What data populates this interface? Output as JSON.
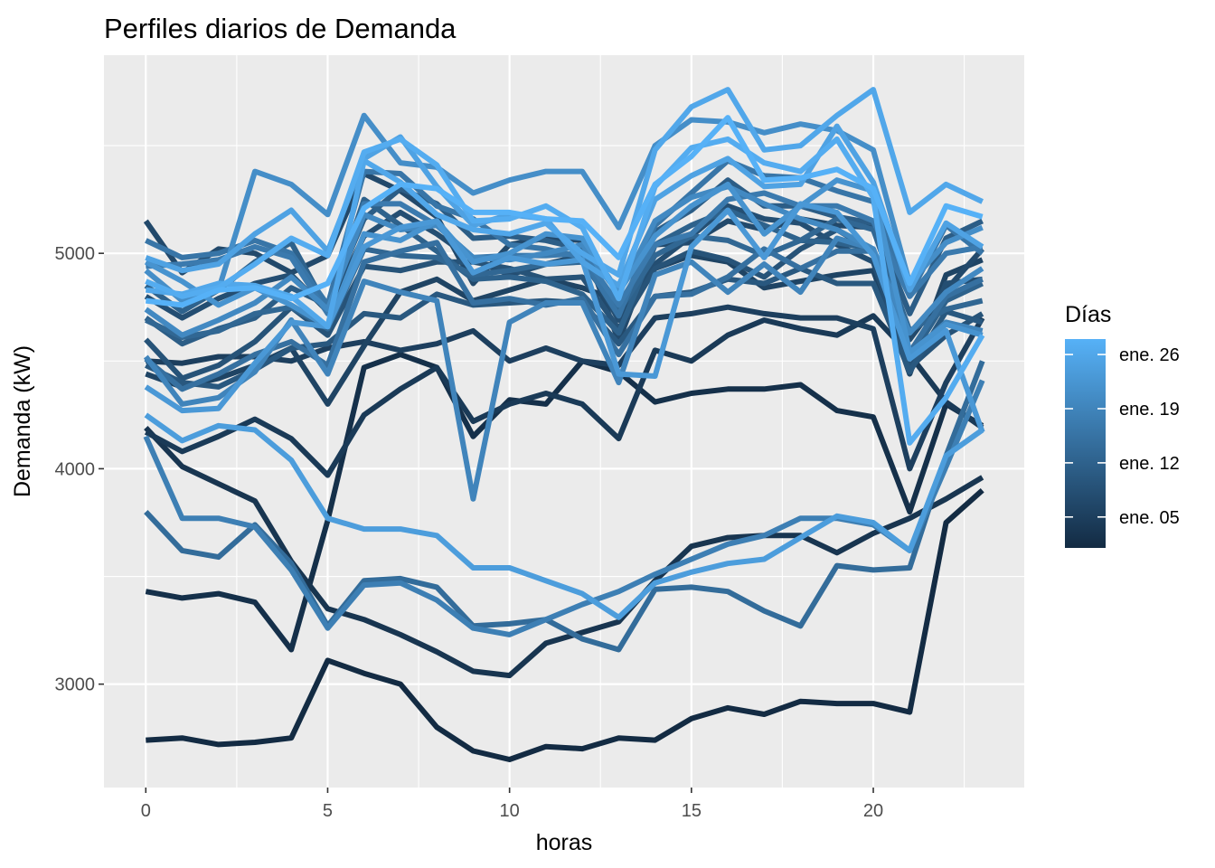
{
  "chart_data": {
    "type": "line",
    "title": "Perfiles diarios de Demanda",
    "xlabel": "horas",
    "ylabel": "Demanda (kW)",
    "xlim": [
      -1.15,
      24.15
    ],
    "ylim": [
      2520,
      5920
    ],
    "x_ticks": [
      0,
      5,
      10,
      15,
      20
    ],
    "x_tick_labels": [
      "0",
      "5",
      "10",
      "15",
      "20"
    ],
    "y_ticks": [
      3000,
      4000,
      5000
    ],
    "y_tick_labels": [
      "3000",
      "4000",
      "5000"
    ],
    "grid": true,
    "legend": {
      "title": "Días",
      "placement": "right",
      "type": "colorbar",
      "low_color": "#132B43",
      "high_color": "#56B1F7",
      "labels": [
        "ene. 26",
        "ene. 19",
        "ene. 12",
        "ene. 05"
      ],
      "label_days": [
        26,
        19,
        12,
        5
      ],
      "day_range": [
        1,
        28
      ]
    },
    "x": [
      0,
      1,
      2,
      3,
      4,
      5,
      6,
      7,
      8,
      9,
      10,
      11,
      12,
      13,
      14,
      15,
      16,
      17,
      18,
      19,
      20,
      21,
      22,
      23
    ],
    "series": [
      {
        "name": "ene. 01",
        "day": 1,
        "values": [
          2740,
          2750,
          2720,
          2730,
          2750,
          3110,
          3050,
          3000,
          2800,
          2690,
          2650,
          2710,
          2700,
          2750,
          2740,
          2840,
          2890,
          2860,
          2920,
          2910,
          2910,
          2870,
          3750,
          3900
        ]
      },
      {
        "name": "ene. 02",
        "day": 2,
        "values": [
          3430,
          3400,
          3420,
          3380,
          3160,
          3760,
          4470,
          4530,
          4470,
          4150,
          4320,
          4300,
          4500,
          4450,
          4310,
          4350,
          4370,
          4370,
          4390,
          4270,
          4240,
          3800,
          4300,
          4200
        ]
      },
      {
        "name": "ene. 03",
        "day": 3,
        "values": [
          4190,
          4010,
          3930,
          3850,
          3570,
          3350,
          3300,
          3230,
          3150,
          3060,
          3040,
          3190,
          3240,
          3290,
          3480,
          3640,
          3680,
          3690,
          3690,
          3610,
          3700,
          3770,
          3860,
          3960
        ]
      },
      {
        "name": "ene. 04",
        "day": 4,
        "values": [
          4170,
          4080,
          4150,
          4230,
          4140,
          3970,
          4250,
          4370,
          4470,
          4220,
          4300,
          4350,
          4300,
          4140,
          4550,
          4500,
          4620,
          4690,
          4650,
          4620,
          4710,
          4530,
          4310,
          4190
        ]
      },
      {
        "name": "ene. 05",
        "day": 5,
        "values": [
          4500,
          4490,
          4520,
          4520,
          4500,
          4560,
          4590,
          4550,
          4580,
          4640,
          4500,
          4560,
          4500,
          4480,
          4700,
          4720,
          4750,
          4720,
          4700,
          4700,
          4650,
          4000,
          4400,
          4700
        ]
      },
      {
        "name": "ene. 06",
        "day": 6,
        "values": [
          4440,
          4380,
          4420,
          4480,
          4560,
          4300,
          4570,
          4820,
          4880,
          4780,
          4830,
          4880,
          4840,
          4780,
          4930,
          4990,
          4960,
          4840,
          4870,
          4900,
          4920,
          4440,
          4900,
          4970
        ]
      },
      {
        "name": "ene. 07",
        "day": 7,
        "values": [
          5150,
          4910,
          5020,
          5000,
          4910,
          4990,
          5370,
          5290,
          5170,
          4860,
          5040,
          5070,
          5060,
          4590,
          5040,
          5050,
          5150,
          5110,
          5160,
          5130,
          5120,
          4600,
          4830,
          5020
        ]
      },
      {
        "name": "ene. 08",
        "day": 8,
        "values": [
          4800,
          4700,
          4790,
          4860,
          4900,
          4730,
          5080,
          5190,
          5090,
          4970,
          4900,
          4950,
          4990,
          4690,
          4950,
          5080,
          5220,
          5160,
          5140,
          5040,
          4960,
          4450,
          4860,
          4880
        ]
      },
      {
        "name": "ene. 09",
        "day": 9,
        "values": [
          4600,
          4420,
          4480,
          4590,
          4750,
          4620,
          4940,
          4920,
          4960,
          4960,
          4930,
          4880,
          4890,
          4650,
          4930,
          5010,
          4970,
          4890,
          5020,
          5110,
          5010,
          4470,
          4620,
          4720
        ]
      },
      {
        "name": "ene. 10",
        "day": 10,
        "values": [
          4480,
          4400,
          4380,
          4460,
          4560,
          4580,
          4720,
          4700,
          4810,
          4760,
          4770,
          4780,
          4770,
          4580,
          4800,
          4820,
          4880,
          4860,
          4930,
          4860,
          4860,
          4450,
          4730,
          4680
        ]
      },
      {
        "name": "ene. 11",
        "day": 11,
        "values": [
          4700,
          4580,
          4650,
          4700,
          4840,
          4760,
          5160,
          5300,
          5230,
          5070,
          5080,
          5060,
          5020,
          4720,
          5100,
          5200,
          5340,
          5220,
          5220,
          5170,
          5140,
          4720,
          5070,
          5150
        ]
      },
      {
        "name": "ene. 12",
        "day": 12,
        "values": [
          4850,
          4730,
          4830,
          4960,
          5050,
          4740,
          5250,
          5130,
          5010,
          4880,
          4890,
          4870,
          4810,
          4630,
          5040,
          5130,
          5200,
          5130,
          5060,
          5050,
          5020,
          4510,
          4780,
          4860
        ]
      },
      {
        "name": "ene. 13",
        "day": 13,
        "values": [
          4690,
          4610,
          4640,
          4720,
          4750,
          4650,
          5020,
          4990,
          4980,
          4900,
          4920,
          4950,
          4960,
          4730,
          4990,
          5080,
          5060,
          4990,
          5060,
          5160,
          5110,
          4640,
          4740,
          4780
        ]
      },
      {
        "name": "ene. 14",
        "day": 14,
        "values": [
          3800,
          3620,
          3590,
          3740,
          3560,
          3270,
          3480,
          3490,
          3450,
          3270,
          3280,
          3300,
          3210,
          3160,
          3440,
          3450,
          3430,
          3340,
          3270,
          3550,
          3530,
          3540,
          4060,
          4500
        ]
      },
      {
        "name": "ene. 15",
        "day": 15,
        "values": [
          4510,
          4370,
          4440,
          4530,
          4590,
          4480,
          4960,
          5010,
          5050,
          4770,
          4790,
          4760,
          4790,
          4530,
          4800,
          4810,
          4890,
          5020,
          4930,
          5010,
          5010,
          4540,
          4800,
          4880
        ]
      },
      {
        "name": "ene. 16",
        "day": 16,
        "values": [
          5060,
          4980,
          5000,
          5060,
          5000,
          4760,
          5380,
          5370,
          5220,
          5160,
          5040,
          5020,
          4980,
          4710,
          5130,
          5280,
          5430,
          5360,
          5350,
          5290,
          5240,
          4810,
          5130,
          5000
        ]
      },
      {
        "name": "ene. 17",
        "day": 17,
        "values": [
          4940,
          4950,
          4970,
          5030,
          4980,
          4720,
          5230,
          5230,
          5130,
          4980,
          4990,
          4990,
          5000,
          4760,
          5040,
          5090,
          5250,
          5280,
          5220,
          5220,
          5150,
          4800,
          5000,
          5030
        ]
      },
      {
        "name": "ene. 18",
        "day": 18,
        "values": [
          4150,
          3770,
          3770,
          3730,
          3530,
          3260,
          3460,
          3470,
          3390,
          3260,
          3230,
          3300,
          3370,
          3430,
          3510,
          3580,
          3650,
          3690,
          3770,
          3770,
          3740,
          3620,
          4010,
          4410
        ]
      },
      {
        "name": "ene. 19",
        "day": 19,
        "values": [
          4520,
          4300,
          4330,
          4450,
          4690,
          4440,
          4870,
          4820,
          4780,
          3860,
          4680,
          4770,
          4770,
          4400,
          4900,
          4960,
          4820,
          4950,
          4820,
          5070,
          5020,
          4530,
          4680,
          4640
        ]
      },
      {
        "name": "ene. 20",
        "day": 20,
        "values": [
          4740,
          4620,
          4690,
          4770,
          4890,
          4740,
          5180,
          5110,
          5130,
          4980,
          4970,
          5000,
          5040,
          4810,
          5150,
          5260,
          5310,
          5230,
          5160,
          5110,
          5020,
          4630,
          4820,
          4930
        ]
      },
      {
        "name": "ene. 21",
        "day": 21,
        "values": [
          4920,
          4780,
          4830,
          5380,
          5320,
          5180,
          5640,
          5420,
          5400,
          5280,
          5340,
          5380,
          5380,
          5120,
          5500,
          5620,
          5610,
          5560,
          5600,
          5570,
          5480,
          4860,
          5050,
          5120
        ]
      },
      {
        "name": "ene. 22",
        "day": 22,
        "values": [
          4960,
          4870,
          4760,
          4840,
          4760,
          4660,
          5090,
          5060,
          5150,
          4960,
          5000,
          5090,
          5070,
          4820,
          5080,
          5220,
          5320,
          5090,
          5220,
          5340,
          5290,
          4540,
          4670,
          4620
        ]
      },
      {
        "name": "ene. 23",
        "day": 23,
        "values": [
          4380,
          4270,
          4280,
          4490,
          4680,
          4660,
          5030,
          5120,
          5150,
          4910,
          4980,
          4950,
          4970,
          4440,
          4430,
          5030,
          5200,
          4980,
          5230,
          5190,
          4990,
          4510,
          4640,
          4170
        ]
      },
      {
        "name": "ene. 24",
        "day": 24,
        "values": [
          4250,
          4130,
          4200,
          4180,
          4040,
          3770,
          3720,
          3720,
          3690,
          3540,
          3540,
          3480,
          3420,
          3310,
          3470,
          3520,
          3560,
          3580,
          3680,
          3780,
          3750,
          3620,
          4060,
          4180
        ]
      },
      {
        "name": "ene. 25",
        "day": 25,
        "values": [
          4980,
          4920,
          4950,
          5090,
          5200,
          5010,
          5440,
          5540,
          5310,
          5130,
          5180,
          5160,
          4960,
          4850,
          5250,
          5360,
          5440,
          5310,
          5320,
          5590,
          5330,
          4830,
          5140,
          5030
        ]
      },
      {
        "name": "ene. 26",
        "day": 26,
        "values": [
          4830,
          4810,
          4860,
          4850,
          4800,
          4660,
          5430,
          5330,
          5180,
          5110,
          5090,
          5140,
          5000,
          4900,
          5480,
          5680,
          5760,
          5480,
          5500,
          5640,
          5760,
          5190,
          5320,
          5240
        ]
      },
      {
        "name": "ene. 27",
        "day": 27,
        "values": [
          4870,
          4800,
          4840,
          4950,
          5070,
          4990,
          5470,
          5530,
          5410,
          5150,
          5160,
          5220,
          5120,
          4790,
          5310,
          5490,
          5530,
          5420,
          5380,
          5530,
          5260,
          4120,
          4330,
          4620
        ]
      },
      {
        "name": "ene. 28",
        "day": 28,
        "values": [
          4780,
          4760,
          4830,
          4840,
          4790,
          4860,
          5210,
          5320,
          5300,
          5190,
          5190,
          5160,
          5150,
          4980,
          5320,
          5450,
          5630,
          5340,
          5350,
          5390,
          5300,
          4860,
          5220,
          5170
        ]
      }
    ]
  }
}
